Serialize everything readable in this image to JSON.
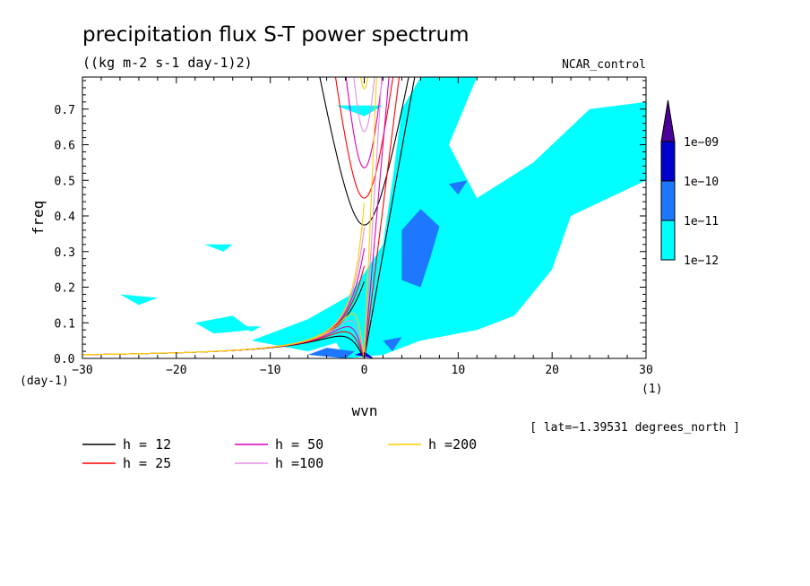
{
  "chart_data": {
    "type": "heatmap",
    "title": "precipitation flux S-T power spectrum",
    "units": "((kg m-2 s-1 day-1)2)",
    "dataset": "NCAR_control",
    "xlabel": "wvn",
    "ylabel": "freq",
    "x_unit": "(1)",
    "y_unit": "(day-1)",
    "xlim": [
      -30,
      30
    ],
    "ylim": [
      0,
      0.79
    ],
    "x_ticks": [
      -30,
      -20,
      -10,
      0,
      10,
      20,
      30
    ],
    "x_tick_labels": [
      "−30",
      "−20",
      "−10",
      "0",
      "10",
      "20",
      "30"
    ],
    "y_ticks": [
      0,
      0.1,
      0.2,
      0.3,
      0.4,
      0.5,
      0.6,
      0.7
    ],
    "y_tick_labels": [
      "0.0",
      "0.1",
      "0.2",
      "0.3",
      "0.4",
      "0.5",
      "0.6",
      "0.7"
    ],
    "latitude_note": "[ lat=−1.39531 degrees_north ]",
    "colorbar": {
      "levels": [
        "1e−12",
        "1e−11",
        "1e−10",
        "1e−09"
      ],
      "colors": [
        "#00ffff",
        "#1e78ff",
        "#0000cd",
        "#4b0096"
      ]
    },
    "dispersion_curves": [
      {
        "name": "h = 12",
        "h": 12,
        "color": "#000000"
      },
      {
        "name": "h = 25",
        "h": 25,
        "color": "#ff0000"
      },
      {
        "name": "h = 50",
        "h": 50,
        "color": "#dd00bb"
      },
      {
        "name": "h =100",
        "h": 100,
        "color": "#e48fe0"
      },
      {
        "name": "h =200",
        "h": 200,
        "color": "#ffcc00"
      }
    ],
    "contour_regions": [
      {
        "level": 1,
        "polygon": [
          [
            -2,
            0.0
          ],
          [
            -4,
            0.09
          ],
          [
            -1,
            0.2
          ],
          [
            2,
            0.32
          ],
          [
            3,
            0.5
          ],
          [
            4,
            0.7
          ],
          [
            6,
            0.79
          ],
          [
            12,
            0.79
          ],
          [
            9,
            0.6
          ],
          [
            12,
            0.45
          ],
          [
            18,
            0.55
          ],
          [
            24,
            0.7
          ],
          [
            30,
            0.72
          ],
          [
            30,
            0.5
          ],
          [
            22,
            0.4
          ],
          [
            20,
            0.25
          ],
          [
            16,
            0.12
          ],
          [
            12,
            0.08
          ],
          [
            6,
            0.05
          ],
          [
            2,
            0.01
          ]
        ]
      },
      {
        "level": 1,
        "polygon": [
          [
            -12,
            0.05
          ],
          [
            -6,
            0.11
          ],
          [
            0,
            0.2
          ],
          [
            2,
            0.14
          ],
          [
            -1,
            0.06
          ],
          [
            -6,
            0.02
          ]
        ]
      },
      {
        "level": 1,
        "polygon": [
          [
            -18,
            0.1
          ],
          [
            -14,
            0.12
          ],
          [
            -12,
            0.08
          ],
          [
            -16,
            0.07
          ]
        ]
      },
      {
        "level": 1,
        "polygon": [
          [
            -26,
            0.18
          ],
          [
            -22,
            0.17
          ],
          [
            -24,
            0.15
          ]
        ]
      },
      {
        "level": 1,
        "polygon": [
          [
            -17,
            0.32
          ],
          [
            -14,
            0.32
          ],
          [
            -15,
            0.3
          ]
        ]
      },
      {
        "level": 1,
        "polygon": [
          [
            -3,
            0.71
          ],
          [
            2,
            0.71
          ],
          [
            0,
            0.68
          ]
        ]
      },
      {
        "level": 1,
        "polygon": [
          [
            -13,
            0.09
          ],
          [
            -11,
            0.09
          ],
          [
            -12,
            0.075
          ]
        ]
      },
      {
        "level": 2,
        "polygon": [
          [
            4,
            0.36
          ],
          [
            6,
            0.42
          ],
          [
            8,
            0.37
          ],
          [
            7,
            0.28
          ],
          [
            6,
            0.2
          ],
          [
            4,
            0.22
          ]
        ]
      },
      {
        "level": 2,
        "polygon": [
          [
            9,
            0.49
          ],
          [
            11,
            0.5
          ],
          [
            10,
            0.46
          ]
        ]
      },
      {
        "level": 2,
        "polygon": [
          [
            -6,
            0.01
          ],
          [
            -4,
            0.03
          ],
          [
            -1,
            0.02
          ],
          [
            -2,
            0.0
          ]
        ]
      },
      {
        "level": 2,
        "polygon": [
          [
            2,
            0.05
          ],
          [
            4,
            0.06
          ],
          [
            3,
            0.02
          ]
        ]
      },
      {
        "level": 2,
        "polygon": [
          [
            5,
            0.3
          ],
          [
            7,
            0.36
          ],
          [
            7,
            0.3
          ]
        ]
      },
      {
        "level": 3,
        "polygon": [
          [
            -1,
            0.01
          ],
          [
            0,
            0.02
          ],
          [
            1,
            0.0
          ]
        ]
      }
    ]
  }
}
